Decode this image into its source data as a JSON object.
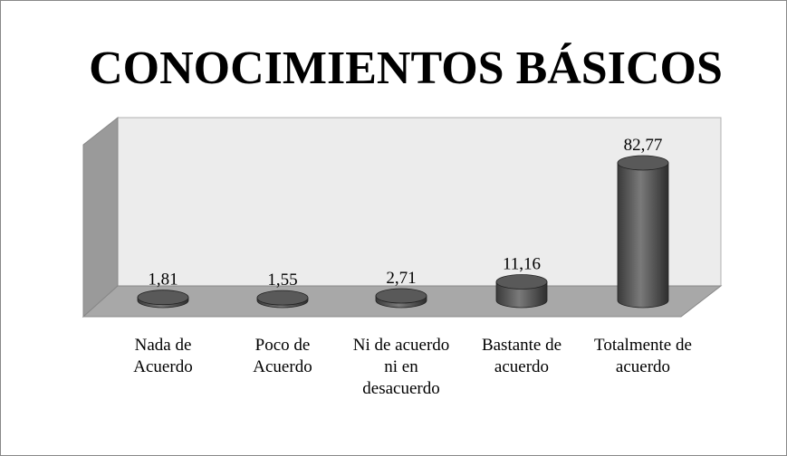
{
  "chart_data": {
    "type": "bar3d",
    "title": "CONOCIMIENTOS BÁSICOS",
    "categories": [
      "Nada de Acuerdo",
      "Poco de Acuerdo",
      "Ni de acuerdo ni en desacuerdo",
      "Bastante de acuerdo",
      "Totalmente de acuerdo"
    ],
    "values": [
      1.81,
      1.55,
      2.71,
      11.16,
      82.77
    ],
    "value_labels": [
      "1,81",
      "1,55",
      "2,71",
      "11,16",
      "82,77"
    ],
    "color": "#595959"
  }
}
